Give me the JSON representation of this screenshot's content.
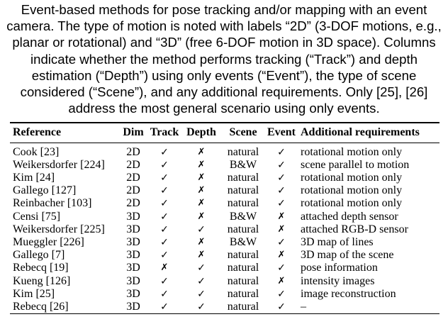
{
  "caption": "Event-based methods for pose tracking and/or mapping with an event camera. The type of motion is noted with labels “2D” (3-DOF motions, e.g., planar or rotational) and “3D” (free 6-DOF motion in 3D space). Columns indicate whether the method performs tracking (“Track”) and depth estimation (“Depth”) using only events (“Event”), the type of scene considered (“Scene”), and any additional requirements. Only [25], [26] address the most general scenario using only events.",
  "table": {
    "headers": [
      "Reference",
      "Dim",
      "Track",
      "Depth",
      "Scene",
      "Event",
      "Additional requirements"
    ],
    "rows": [
      {
        "reference": "Cook [23]",
        "dim": "2D",
        "track": "✓",
        "depth": "✗",
        "scene": "natural",
        "event": "✓",
        "requirements": "rotational motion only"
      },
      {
        "reference": "Weikersdorfer [224]",
        "dim": "2D",
        "track": "✓",
        "depth": "✗",
        "scene": "B&W",
        "event": "✓",
        "requirements": "scene parallel to motion"
      },
      {
        "reference": "Kim [24]",
        "dim": "2D",
        "track": "✓",
        "depth": "✗",
        "scene": "natural",
        "event": "✓",
        "requirements": "rotational motion only"
      },
      {
        "reference": "Gallego [127]",
        "dim": "2D",
        "track": "✓",
        "depth": "✗",
        "scene": "natural",
        "event": "✓",
        "requirements": "rotational motion only"
      },
      {
        "reference": "Reinbacher [103]",
        "dim": "2D",
        "track": "✓",
        "depth": "✗",
        "scene": "natural",
        "event": "✓",
        "requirements": "rotational motion only"
      },
      {
        "reference": "Censi [75]",
        "dim": "3D",
        "track": "✓",
        "depth": "✗",
        "scene": "B&W",
        "event": "✗",
        "requirements": "attached depth sensor"
      },
      {
        "reference": "Weikersdorfer [225]",
        "dim": "3D",
        "track": "✓",
        "depth": "✓",
        "scene": "natural",
        "event": "✗",
        "requirements": "attached RGB-D sensor"
      },
      {
        "reference": "Mueggler [226]",
        "dim": "3D",
        "track": "✓",
        "depth": "✗",
        "scene": "B&W",
        "event": "✓",
        "requirements": "3D map of lines"
      },
      {
        "reference": "Gallego [7]",
        "dim": "3D",
        "track": "✓",
        "depth": "✗",
        "scene": "natural",
        "event": "✗",
        "requirements": "3D map of the scene"
      },
      {
        "reference": "Rebecq [19]",
        "dim": "3D",
        "track": "✗",
        "depth": "✓",
        "scene": "natural",
        "event": "✓",
        "requirements": "pose information"
      },
      {
        "reference": "Kueng [126]",
        "dim": "3D",
        "track": "✓",
        "depth": "✓",
        "scene": "natural",
        "event": "✗",
        "requirements": "intensity images"
      },
      {
        "reference": "Kim [25]",
        "dim": "3D",
        "track": "✓",
        "depth": "✓",
        "scene": "natural",
        "event": "✓",
        "requirements": "image reconstruction"
      },
      {
        "reference": "Rebecq [26]",
        "dim": "3D",
        "track": "✓",
        "depth": "✓",
        "scene": "natural",
        "event": "✓",
        "requirements": "–"
      }
    ]
  }
}
